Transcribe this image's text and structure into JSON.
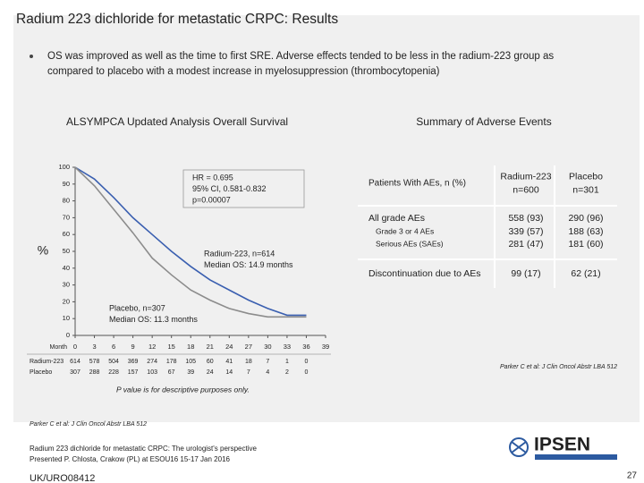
{
  "title": "Radium 223 dichloride for metastatic CRPC: Results",
  "bullet": [
    "OS was improved as well as the time to first SRE. Adverse effects tended to be less in the radium-223 group as",
    "compared to placebo with a modest increase in myelosuppression (thrombocytopenia)"
  ],
  "left_heading": "ALSYMPCA Updated Analysis Overall Survival",
  "right_heading": "Summary of Adverse Events",
  "chart_data": {
    "type": "line",
    "y_label": "%",
    "x_row_label": "Month",
    "xlim": [
      0,
      39
    ],
    "xticks": [
      0,
      3,
      6,
      9,
      12,
      15,
      18,
      21,
      24,
      27,
      30,
      33,
      36,
      39
    ],
    "ylim": [
      0,
      100
    ],
    "yticks": [
      0,
      10,
      20,
      30,
      40,
      50,
      60,
      70,
      80,
      90,
      100
    ],
    "series": [
      {
        "name": "Radium-223",
        "color": "#3a5fb0",
        "x": [
          0,
          3,
          6,
          9,
          12,
          15,
          18,
          21,
          24,
          27,
          30,
          33,
          36
        ],
        "values": [
          100,
          93,
          82,
          70,
          60,
          50,
          41,
          33,
          27,
          21,
          16,
          12,
          12
        ],
        "at_risk": [
          614,
          578,
          504,
          369,
          274,
          178,
          105,
          60,
          41,
          18,
          7,
          1,
          0
        ]
      },
      {
        "name": "Placebo",
        "color": "#8c8c8c",
        "x": [
          0,
          3,
          6,
          9,
          12,
          15,
          18,
          21,
          24,
          27,
          30,
          33,
          36
        ],
        "values": [
          100,
          89,
          75,
          61,
          46,
          36,
          27,
          21,
          16,
          13,
          11,
          11,
          11
        ],
        "at_risk": [
          307,
          288,
          228,
          157,
          103,
          67,
          39,
          24,
          14,
          7,
          4,
          2,
          0
        ]
      }
    ],
    "annotations": [
      {
        "lines": [
          "HR = 0.695",
          "95% CI, 0.581-0.832",
          "p=0.00007"
        ]
      },
      {
        "lines": [
          "Radium-223, n=614",
          "Median OS: 14.9 months"
        ]
      },
      {
        "lines": [
          "Placebo, n=307",
          "Median OS: 11.3 months"
        ]
      }
    ]
  },
  "table": {
    "header": [
      [
        "Patients With AEs, n (%)"
      ],
      [
        "Radium-223",
        "n=600"
      ],
      [
        "Placebo",
        "n=301"
      ]
    ],
    "rows": [
      [
        "All grade AEs",
        "558 (93)",
        "290 (96)"
      ],
      [
        "Grade 3 or 4 AEs",
        "339 (57)",
        "188 (63)"
      ],
      [
        "Serious AEs (SAEs)",
        "281 (47)",
        "181 (60)"
      ],
      [
        "Discontinuation due to AEs",
        "99 (17)",
        "62 (21)"
      ]
    ]
  },
  "citation_right": "Parker C et al: J Clin Oncol Abstr LBA 512",
  "note": "P value is for descriptive purposes only.",
  "citation_left": "Parker C et al: J Clin Oncol Abstr LBA 512",
  "footer": [
    "Radium 223 dichloride for metastatic CRPC: The urologist's perspective",
    "Presented  P. Chlosta, Crakow (PL) at ESOU16 15-17 Jan 2016"
  ],
  "code": "UK/URO08412",
  "logo": "IPSEN",
  "page_number": "27"
}
